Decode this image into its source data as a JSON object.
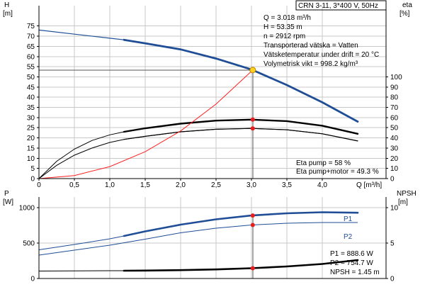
{
  "chart_data": [
    {
      "type": "line",
      "title": "CRN 3-11, 3*400 V, 50Hz",
      "left_axis_label": "H",
      "left_axis_unit": "[m]",
      "right_axis_label": "eta",
      "right_axis_unit": "[%]",
      "xlabel": "Q [m³/h]",
      "xlim": [
        0,
        4.9
      ],
      "ylim": [
        0,
        85
      ],
      "eta_lim": [
        0,
        170
      ],
      "x_ticks": [
        0,
        0.5,
        1.0,
        1.5,
        2.0,
        2.5,
        3.0,
        3.5,
        4.0
      ],
      "x_tick_labels": [
        "0",
        "0,5",
        "1,0",
        "1,5",
        "2,0",
        "2,5",
        "3,0",
        "3,5",
        "4,0"
      ],
      "y_ticks": [
        0,
        5,
        10,
        15,
        20,
        25,
        30,
        35,
        40,
        45,
        50,
        55,
        60,
        65,
        70,
        75
      ],
      "eta_ticks": [
        0,
        10,
        20,
        30,
        40,
        50,
        60,
        70,
        80,
        90,
        100
      ],
      "grid": true,
      "info_lines": [
        "Q = 3.018 m³/h",
        "H = 53.35 m",
        "n = 2912 rpm",
        "Transporterad vätska = Vatten",
        "Vätsketemperatur under drift = 20 °C",
        "Volymetrisk vikt = 998.2 kg/m³"
      ],
      "eta_lines": [
        "Eta pump = 58 %",
        "Eta pump+motor = 49.3 %"
      ],
      "duty_point": {
        "q": 3.018,
        "h": 53.35,
        "eta_pump": 58,
        "eta_total": 49.3
      },
      "series": [
        {
          "id": "H",
          "axis": "left",
          "color": "#1f4e96",
          "x": [
            0,
            0.5,
            1.0,
            1.2,
            1.5,
            2.0,
            2.5,
            3.0,
            3.018,
            3.5,
            4.0,
            4.5
          ],
          "y": [
            73,
            71,
            69,
            68.2,
            66.5,
            63.5,
            59,
            53.6,
            53.35,
            46,
            37.5,
            28
          ],
          "emphasized_from": 1.2
        },
        {
          "id": "eta_pump",
          "axis": "right",
          "color": "#000000",
          "x": [
            0,
            0.25,
            0.5,
            0.75,
            1.0,
            1.2,
            1.5,
            2.0,
            2.5,
            3.0,
            3.5,
            4.0,
            4.5
          ],
          "y": [
            0,
            17,
            29,
            37.5,
            43,
            46,
            49.5,
            54,
            57,
            58,
            56.5,
            52,
            44
          ],
          "emphasized_from": 1.2
        },
        {
          "id": "eta_pump_motor",
          "axis": "right",
          "color": "#000000",
          "x": [
            0,
            0.25,
            0.5,
            0.75,
            1.0,
            1.2,
            1.5,
            2.0,
            2.5,
            3.0,
            3.5,
            4.0,
            4.5
          ],
          "y": [
            0,
            13,
            23,
            30,
            35.5,
            38.5,
            41.5,
            46,
            48.5,
            49.3,
            48,
            44,
            37
          ],
          "emphasized_from": 1.2
        },
        {
          "id": "system_curve",
          "axis": "left",
          "color": "#ff2020",
          "x": [
            0,
            0.5,
            1.0,
            1.5,
            2.0,
            2.5,
            3.018
          ],
          "y": [
            0,
            1.5,
            5.9,
            13.2,
            23.4,
            36.6,
            53.35
          ]
        }
      ]
    },
    {
      "type": "line",
      "left_axis_label": "P",
      "left_axis_unit": "[W]",
      "right_axis_label": "NPSH",
      "right_axis_unit": "[m]",
      "xlim": [
        0,
        4.9
      ],
      "ylim": [
        0,
        1150
      ],
      "npsh_lim": [
        0,
        11.5
      ],
      "y_ticks": [
        0,
        500,
        1000
      ],
      "npsh_ticks": [
        0,
        5,
        10
      ],
      "x_ticks": [
        0,
        0.5,
        1.0,
        1.5,
        2.0,
        2.5,
        3.0,
        3.5,
        4.0
      ],
      "grid": true,
      "info_lines": [
        "P1 = 888.6 W",
        "P2 = 754.7 W",
        "NPSH = 1.45 m"
      ],
      "series": [
        {
          "id": "P1",
          "name": "P1",
          "axis": "left",
          "color": "#1f4e96",
          "x": [
            0,
            0.5,
            1.0,
            1.2,
            1.5,
            2.0,
            2.5,
            3.0,
            3.5,
            4.0,
            4.5
          ],
          "y": [
            405,
            480,
            560,
            600,
            665,
            760,
            835,
            888.6,
            920,
            935,
            928
          ],
          "emphasized_from": 1.2
        },
        {
          "id": "P2",
          "name": "P2",
          "axis": "left",
          "color": "#1f4e96",
          "x": [
            0,
            0.5,
            1.0,
            1.5,
            2.0,
            2.5,
            3.0,
            3.5,
            4.0,
            4.5
          ],
          "y": [
            330,
            400,
            470,
            555,
            645,
            710,
            754.7,
            780,
            790,
            790
          ]
        },
        {
          "id": "NPSH",
          "axis": "right",
          "color": "#000000",
          "x": [
            0,
            0.5,
            1.0,
            1.2,
            1.5,
            2.0,
            2.5,
            3.0,
            3.5,
            4.0,
            4.5
          ],
          "y": [
            1.05,
            1.07,
            1.1,
            1.1,
            1.12,
            1.18,
            1.28,
            1.45,
            1.7,
            2.05,
            2.6
          ],
          "emphasized_from": 1.2
        }
      ],
      "duty_values": {
        "q": 3.018,
        "p1": 888.6,
        "p2": 754.7,
        "npsh": 1.45
      }
    }
  ]
}
